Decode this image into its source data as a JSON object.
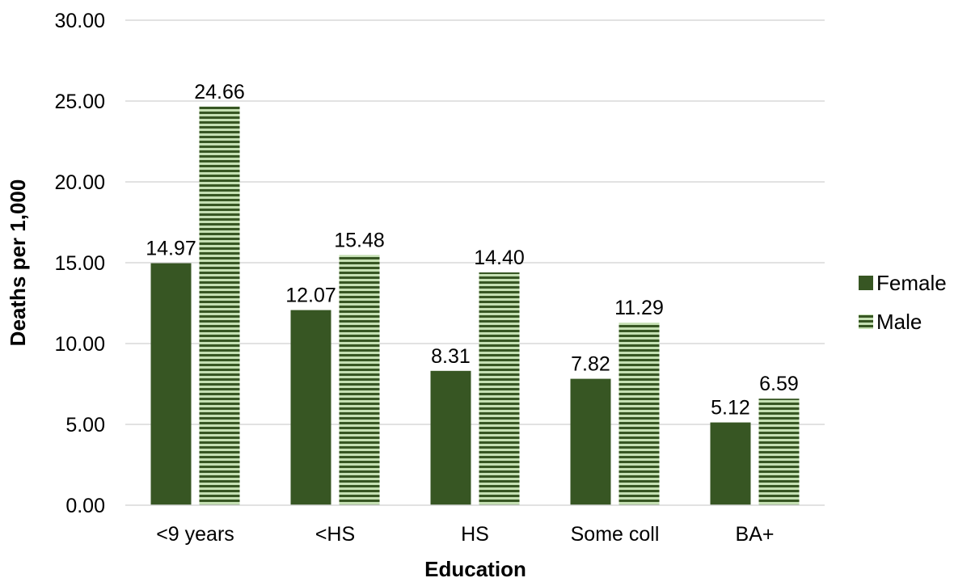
{
  "chart_data": {
    "type": "bar",
    "categories": [
      "<9 years",
      "<HS",
      "HS",
      "Some coll",
      "BA+"
    ],
    "series": [
      {
        "name": "Female",
        "values": [
          14.97,
          12.07,
          8.31,
          7.82,
          5.12
        ],
        "value_labels": [
          "14.97",
          "12.07",
          "8.31",
          "7.82",
          "5.12"
        ],
        "color": "#375623",
        "pattern": "solid"
      },
      {
        "name": "Male",
        "values": [
          24.66,
          15.48,
          14.4,
          11.29,
          6.59
        ],
        "value_labels": [
          "24.66",
          "15.48",
          "14.40",
          "11.29",
          "6.59"
        ],
        "color": "#375623",
        "pattern": "horizontal-stripes",
        "stripe_light_color": "#c5e0b3"
      }
    ],
    "xlabel": "Education",
    "ylabel": "Deaths per 1,000",
    "ylim": [
      0,
      30
    ],
    "yticks": [
      "0.00",
      "5.00",
      "10.00",
      "15.00",
      "20.00",
      "25.00",
      "30.00"
    ],
    "grid": true,
    "grid_color": "#d9d9d9",
    "legend_position": "right"
  }
}
